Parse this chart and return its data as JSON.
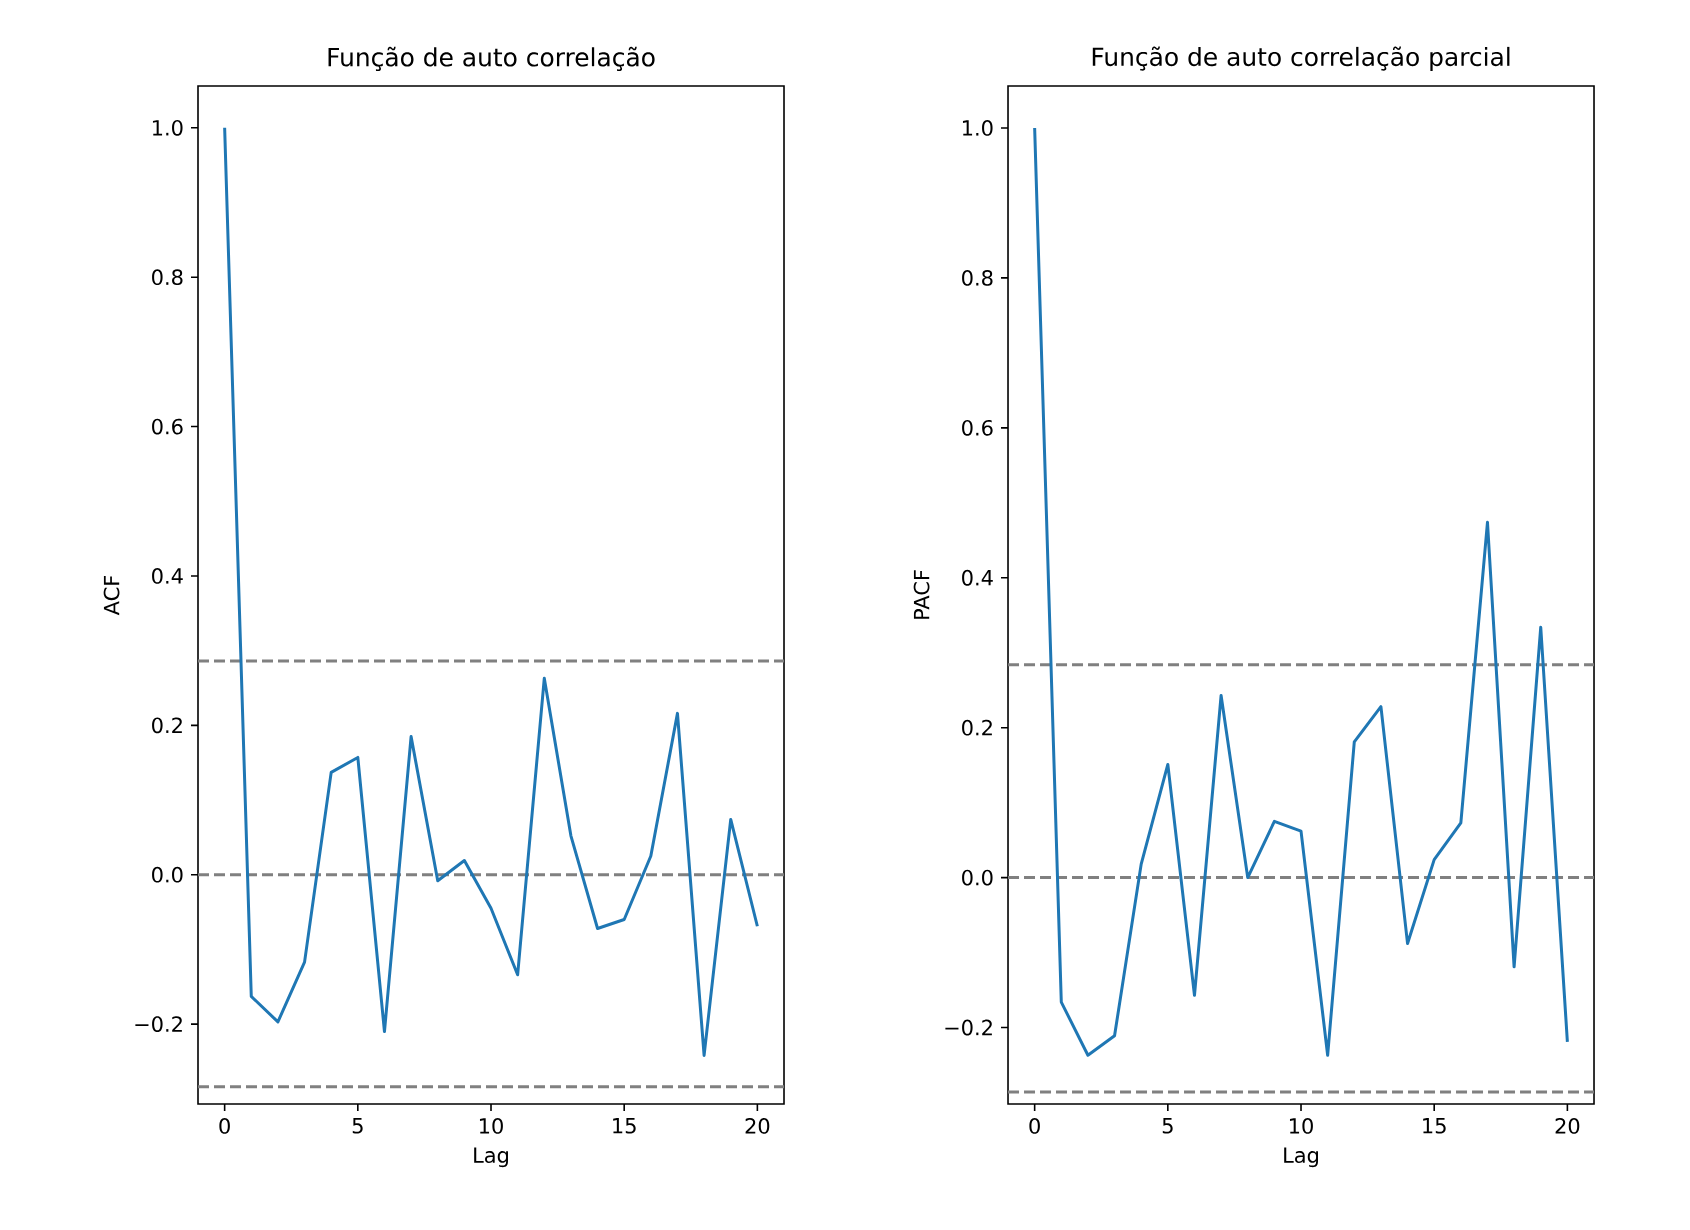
{
  "chart_data": [
    {
      "type": "line",
      "title": "Função de auto correlação",
      "xlabel": "Lag",
      "ylabel": "ACF",
      "x": [
        0,
        1,
        2,
        3,
        4,
        5,
        6,
        7,
        8,
        9,
        10,
        11,
        12,
        13,
        14,
        15,
        16,
        17,
        18,
        19,
        20
      ],
      "series": [
        {
          "color": "#1f77b4",
          "values": [
            1.0,
            -0.163,
            -0.197,
            -0.117,
            0.137,
            0.157,
            -0.21,
            0.185,
            -0.008,
            0.019,
            -0.045,
            -0.134,
            0.263,
            0.052,
            -0.072,
            -0.06,
            0.025,
            0.216,
            -0.242,
            0.074,
            -0.069
          ]
        }
      ],
      "xlim": [
        -1,
        21
      ],
      "ylim": [
        -0.307,
        1.056
      ],
      "xticks": [
        0,
        5,
        10,
        15,
        20
      ],
      "yticks": [
        {
          "value": -0.2,
          "label": "−0.2"
        },
        {
          "value": 0,
          "label": "0.0"
        },
        {
          "value": 0.2,
          "label": "0.2"
        },
        {
          "value": 0.4,
          "label": "0.4"
        },
        {
          "value": 0.6,
          "label": "0.6"
        },
        {
          "value": 0.8,
          "label": "0.8"
        },
        {
          "value": 1.0,
          "label": "1.0"
        }
      ],
      "ref_lines": [
        {
          "axis": "y",
          "value": 0.286,
          "color": "#808080",
          "line_style": "dashed"
        },
        {
          "axis": "y",
          "value": 0,
          "color": "#808080",
          "line_style": "dashed"
        },
        {
          "axis": "y",
          "value": -0.284,
          "color": "#808080",
          "line_style": "dashed"
        }
      ],
      "grid": false,
      "marker": "none",
      "line_style": "solid"
    },
    {
      "type": "line",
      "title": "Função de auto correlação parcial",
      "xlabel": "Lag",
      "ylabel": "PACF",
      "x": [
        0,
        1,
        2,
        3,
        4,
        5,
        6,
        7,
        8,
        9,
        10,
        11,
        12,
        13,
        14,
        15,
        16,
        17,
        18,
        19,
        20
      ],
      "series": [
        {
          "color": "#1f77b4",
          "values": [
            1.0,
            -0.166,
            -0.237,
            -0.211,
            0.018,
            0.151,
            -0.157,
            0.243,
            0.0,
            0.075,
            0.062,
            -0.237,
            0.181,
            0.228,
            -0.088,
            0.024,
            0.073,
            0.474,
            -0.119,
            0.334,
            -0.219
          ]
        }
      ],
      "xlim": [
        -1,
        21
      ],
      "ylim": [
        -0.302,
        1.056
      ],
      "xticks": [
        0,
        5,
        10,
        15,
        20
      ],
      "yticks": [
        {
          "value": -0.2,
          "label": "−0.2"
        },
        {
          "value": 0,
          "label": "0.0"
        },
        {
          "value": 0.2,
          "label": "0.2"
        },
        {
          "value": 0.4,
          "label": "0.4"
        },
        {
          "value": 0.6,
          "label": "0.6"
        },
        {
          "value": 0.8,
          "label": "0.8"
        },
        {
          "value": 1.0,
          "label": "1.0"
        }
      ],
      "ref_lines": [
        {
          "axis": "y",
          "value": 0.284,
          "color": "#808080",
          "line_style": "dashed"
        },
        {
          "axis": "y",
          "value": 0,
          "color": "#808080",
          "line_style": "dashed"
        },
        {
          "axis": "y",
          "value": -0.286,
          "color": "#808080",
          "line_style": "dashed"
        }
      ],
      "grid": false,
      "marker": "none",
      "line_style": "solid"
    }
  ]
}
